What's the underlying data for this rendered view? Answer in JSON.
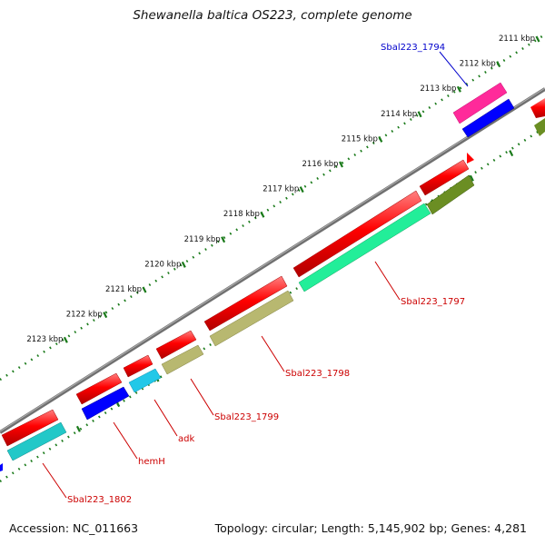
{
  "title": "Shewanella baltica OS223, complete genome",
  "footer": {
    "accession": "Accession: NC_011663",
    "summary": "Topology: circular; Length: 5,145,902 bp; Genes: 4,281"
  },
  "colors": {
    "backbone": "#808080",
    "tick": "#1a7a1a",
    "forward_cds": "#ff0000",
    "reverse_cds": "#0000ff",
    "label_red": "#cc0000",
    "label_blue": "#0000cc",
    "pink": "#ff2a9a",
    "cyan": "#22c8e8",
    "teal": "#22c8c8",
    "spring_green": "#22ee99",
    "khaki": "#b8b870",
    "olive": "#6b8e23"
  },
  "ticks": [
    {
      "label": "2111 kbp",
      "kbp": 2111
    },
    {
      "label": "2112 kbp",
      "kbp": 2112
    },
    {
      "label": "2113 kbp",
      "kbp": 2113
    },
    {
      "label": "2114 kbp",
      "kbp": 2114
    },
    {
      "label": "2115 kbp",
      "kbp": 2115
    },
    {
      "label": "2116 kbp",
      "kbp": 2116
    },
    {
      "label": "2117 kbp",
      "kbp": 2117
    },
    {
      "label": "2118 kbp",
      "kbp": 2118
    },
    {
      "label": "2119 kbp",
      "kbp": 2119
    },
    {
      "label": "2120 kbp",
      "kbp": 2120
    },
    {
      "label": "2121 kbp",
      "kbp": 2121
    },
    {
      "label": "2122 kbp",
      "kbp": 2122
    },
    {
      "label": "2123 kbp",
      "kbp": 2123
    }
  ],
  "gene_labels": [
    {
      "text": "Sbal223_1794",
      "color": "blue"
    },
    {
      "text": "Sbal223_1797",
      "color": "red"
    },
    {
      "text": "Sbal223_1798",
      "color": "red"
    },
    {
      "text": "Sbal223_1799",
      "color": "red"
    },
    {
      "text": "adk",
      "color": "red"
    },
    {
      "text": "hemH",
      "color": "red"
    },
    {
      "text": "Sbal223_1802",
      "color": "red"
    }
  ]
}
